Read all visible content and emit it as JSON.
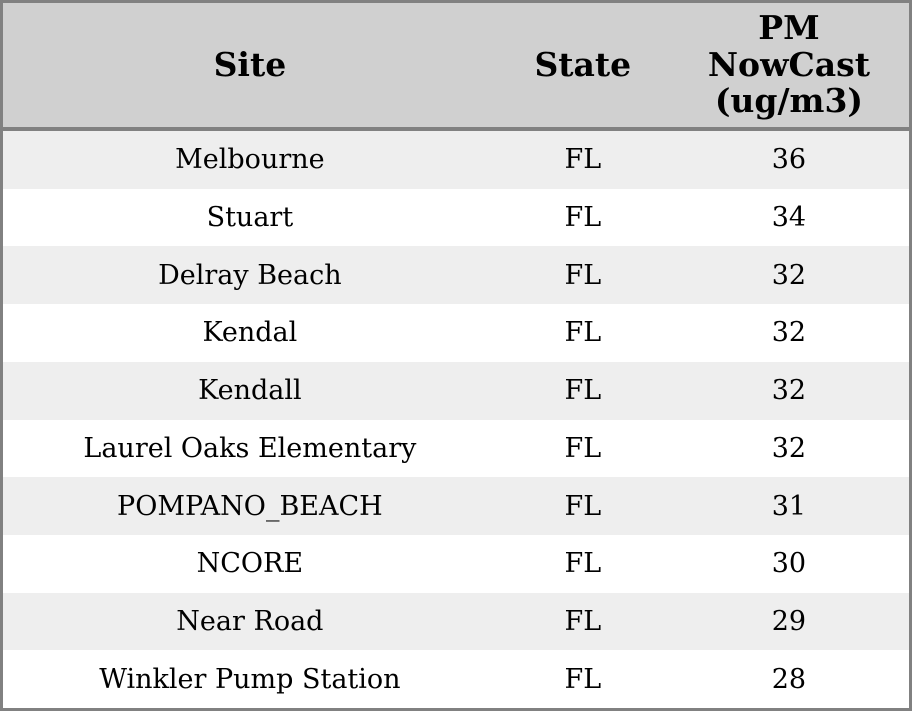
{
  "chart_data": {
    "type": "table",
    "columns": [
      {
        "key": "site",
        "label_lines": [
          "Site"
        ]
      },
      {
        "key": "state",
        "label_lines": [
          "State"
        ]
      },
      {
        "key": "pm_nowcast",
        "label_lines": [
          "PM",
          "NowCast",
          "(ug/m3)"
        ]
      }
    ],
    "rows": [
      {
        "site": "Melbourne",
        "state": "FL",
        "pm_nowcast": "36"
      },
      {
        "site": "Stuart",
        "state": "FL",
        "pm_nowcast": "34"
      },
      {
        "site": "Delray Beach",
        "state": "FL",
        "pm_nowcast": "32"
      },
      {
        "site": "Kendal",
        "state": "FL",
        "pm_nowcast": "32"
      },
      {
        "site": "Kendall",
        "state": "FL",
        "pm_nowcast": "32"
      },
      {
        "site": "Laurel Oaks Elementary",
        "state": "FL",
        "pm_nowcast": "32"
      },
      {
        "site": "POMPANO_BEACH",
        "state": "FL",
        "pm_nowcast": "31"
      },
      {
        "site": "NCORE",
        "state": "FL",
        "pm_nowcast": "30"
      },
      {
        "site": "Near Road",
        "state": "FL",
        "pm_nowcast": "29"
      },
      {
        "site": "Winkler Pump Station",
        "state": "FL",
        "pm_nowcast": "28"
      }
    ]
  },
  "colors": {
    "header_bg": "#d0d0d0",
    "row_stripe_bg": "#eeeeee",
    "row_bg": "#ffffff",
    "border": "#818181",
    "text": "#000000"
  }
}
